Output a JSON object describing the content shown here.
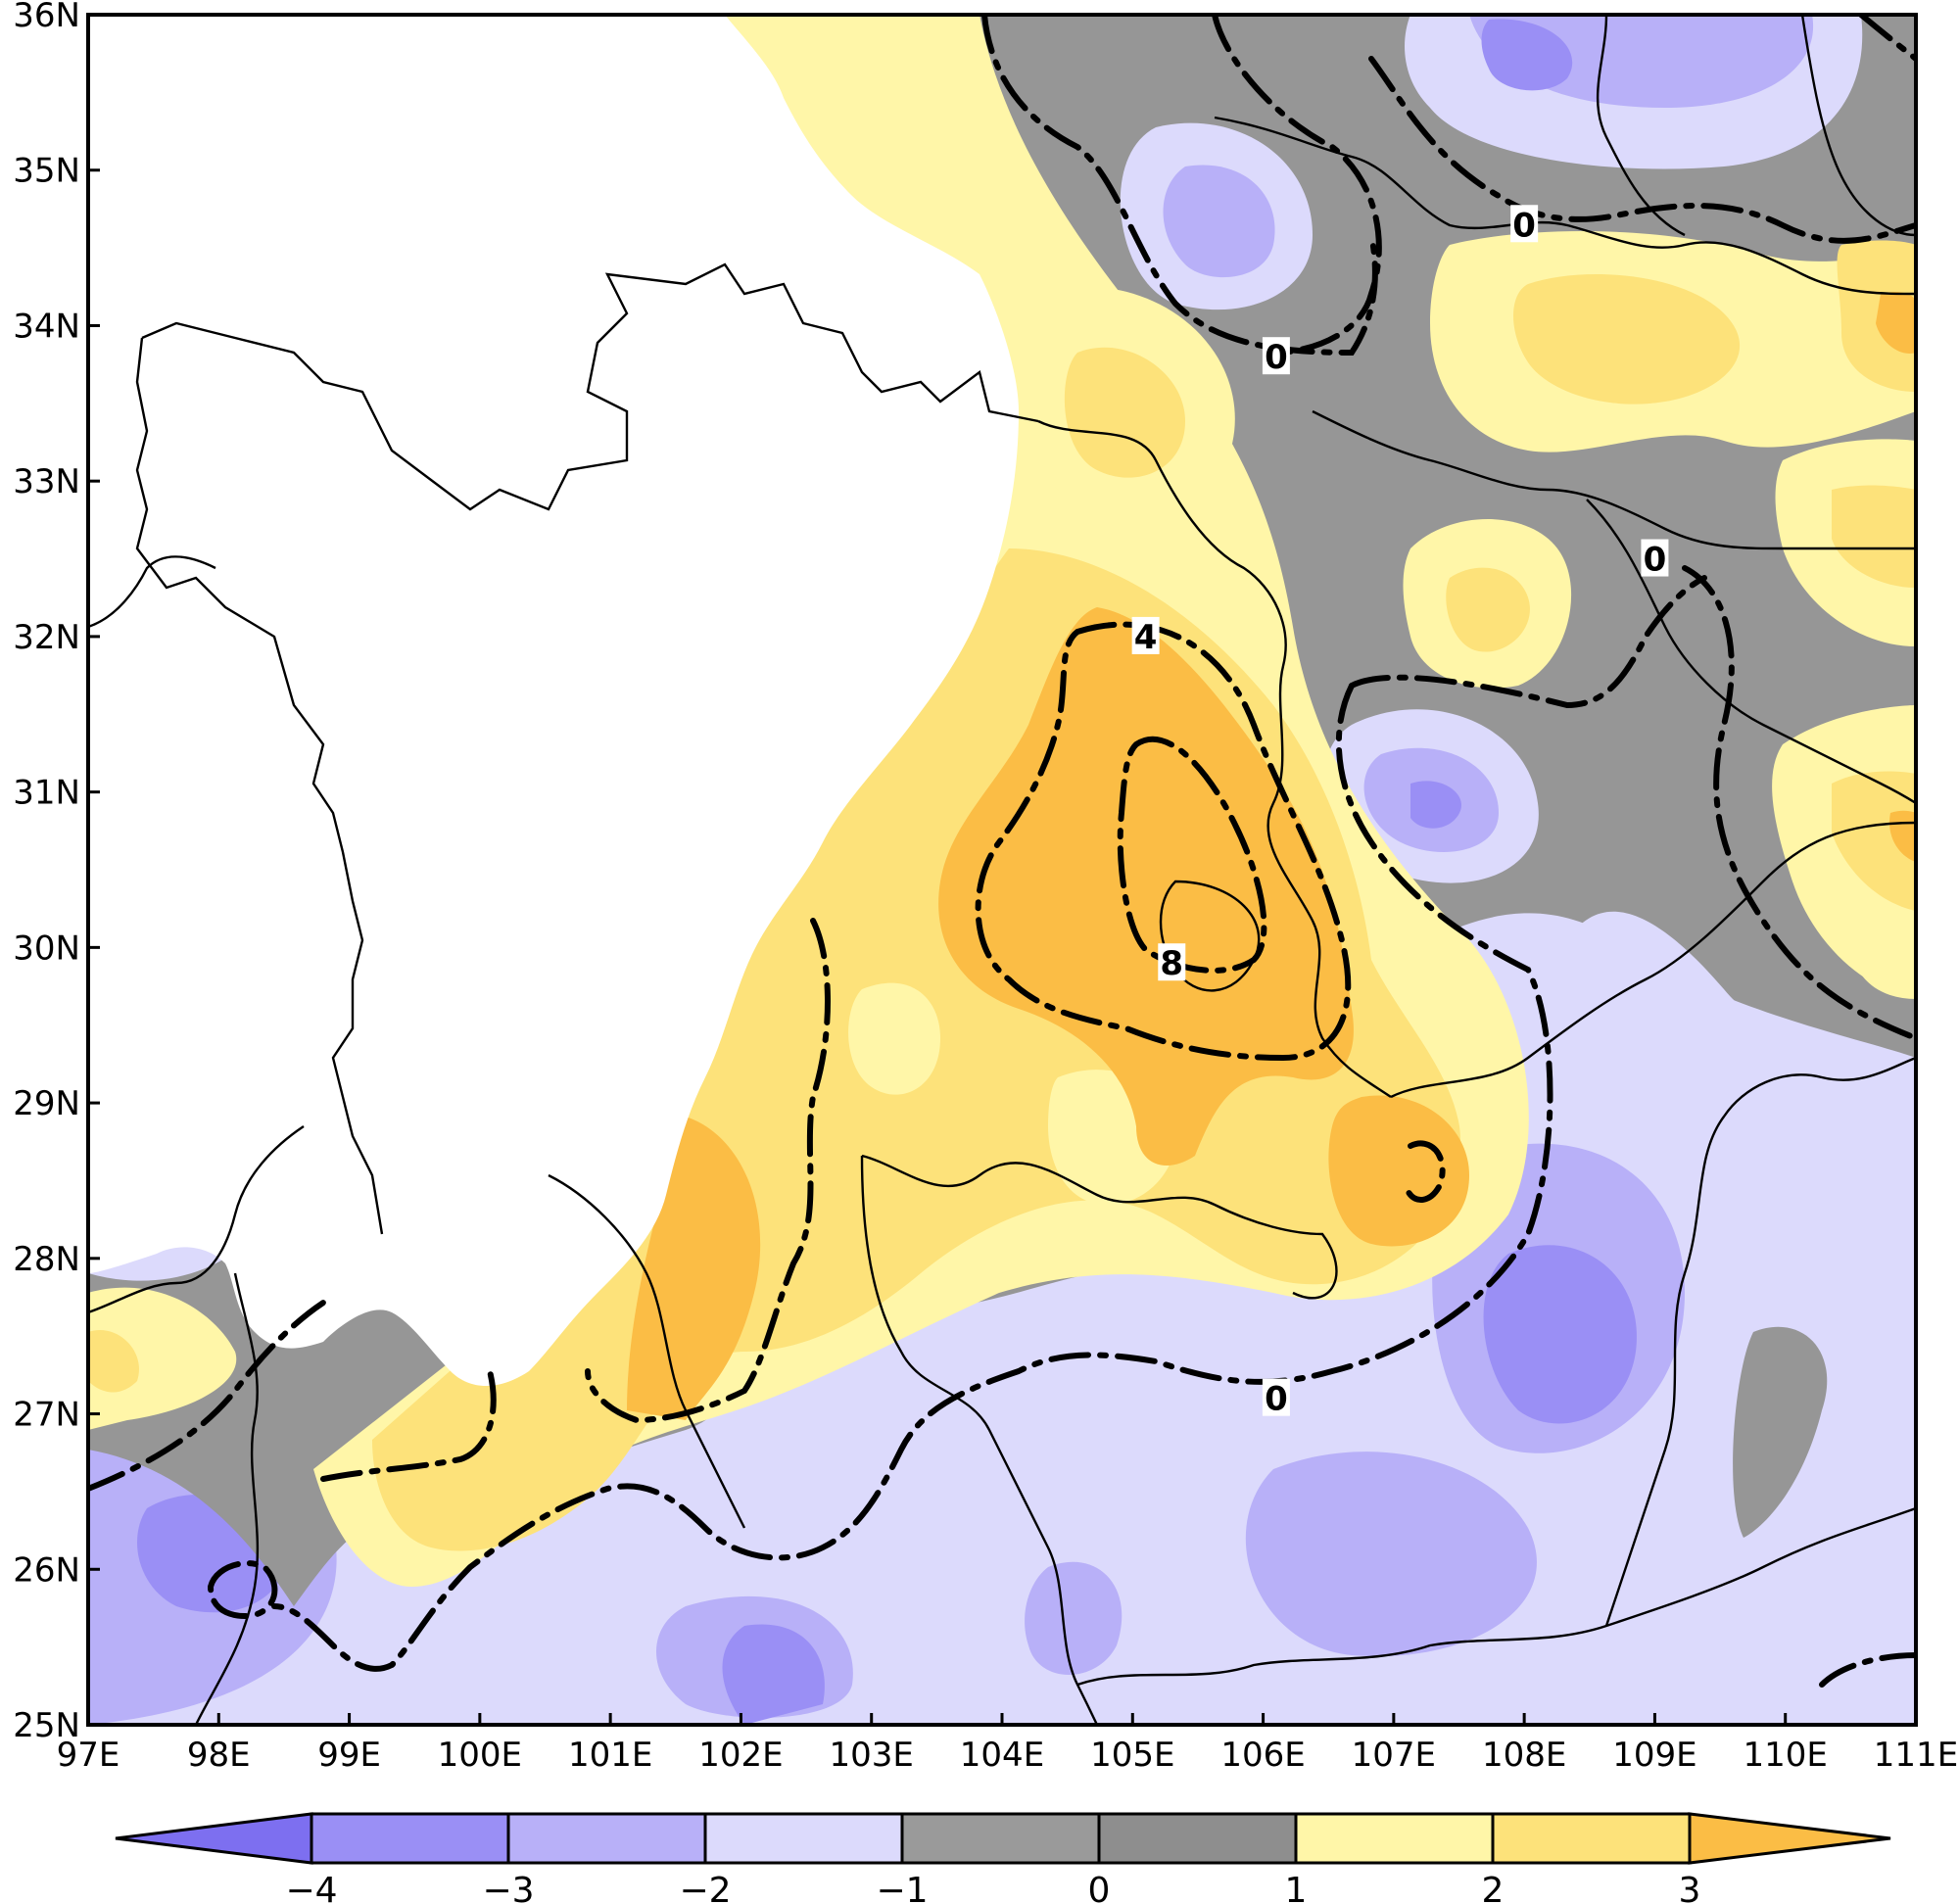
{
  "map": {
    "lon_range": [
      97,
      111
    ],
    "lat_range": [
      25,
      36
    ],
    "x_ticks": [
      "97E",
      "98E",
      "99E",
      "100E",
      "101E",
      "102E",
      "103E",
      "104E",
      "105E",
      "106E",
      "107E",
      "108E",
      "109E",
      "110E",
      "111E"
    ],
    "y_ticks": [
      "25N",
      "26N",
      "27N",
      "28N",
      "29N",
      "30N",
      "31N",
      "32N",
      "33N",
      "34N",
      "35N",
      "36N"
    ],
    "contour_labels": [
      {
        "text": "0",
        "lon": 106.1,
        "lat": 33.8
      },
      {
        "text": "0",
        "lon": 108.0,
        "lat": 34.65
      },
      {
        "text": "0",
        "lon": 109.0,
        "lat": 32.5
      },
      {
        "text": "4",
        "lon": 105.1,
        "lat": 32.0
      },
      {
        "text": "8",
        "lon": 105.3,
        "lat": 29.9
      },
      {
        "text": "0",
        "lon": 106.1,
        "lat": 27.1
      }
    ]
  },
  "colorbar": {
    "ticks": [
      "−4",
      "−3",
      "−2",
      "−1",
      "0",
      "1",
      "2",
      "3"
    ],
    "colors": [
      "#7d6ff0",
      "#9a8ff5",
      "#b8b0f8",
      "#dcdafc",
      "#9a9a9a",
      "#8e8e8e",
      "#fff6a8",
      "#fde27a",
      "#fbbd45"
    ]
  },
  "colors": {
    "neg4": "#7d6ff0",
    "neg3": "#9a8ff5",
    "neg2": "#b8b0f8",
    "neg1": "#dcdafc",
    "zero": "#969696",
    "pos1": "#fff6a8",
    "pos2": "#fde27a",
    "pos3": "#fbbd45"
  }
}
